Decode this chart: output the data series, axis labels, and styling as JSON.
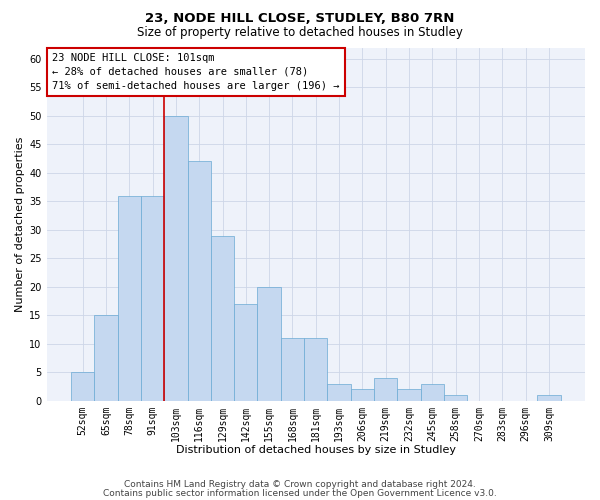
{
  "title1": "23, NODE HILL CLOSE, STUDLEY, B80 7RN",
  "title2": "Size of property relative to detached houses in Studley",
  "xlabel": "Distribution of detached houses by size in Studley",
  "ylabel": "Number of detached properties",
  "categories": [
    "52sqm",
    "65sqm",
    "78sqm",
    "91sqm",
    "103sqm",
    "116sqm",
    "129sqm",
    "142sqm",
    "155sqm",
    "168sqm",
    "181sqm",
    "193sqm",
    "206sqm",
    "219sqm",
    "232sqm",
    "245sqm",
    "258sqm",
    "270sqm",
    "283sqm",
    "296sqm",
    "309sqm"
  ],
  "values": [
    5,
    15,
    36,
    36,
    50,
    42,
    29,
    17,
    20,
    11,
    11,
    3,
    2,
    4,
    2,
    3,
    1,
    0,
    0,
    0,
    1
  ],
  "bar_color": "#c5d8f0",
  "bar_edge_color": "#6aaad4",
  "grid_color": "#cdd6e8",
  "annotation_line_color": "#cc0000",
  "annotation_box_text": "23 NODE HILL CLOSE: 101sqm\n← 28% of detached houses are smaller (78)\n71% of semi-detached houses are larger (196) →",
  "footnote1": "Contains HM Land Registry data © Crown copyright and database right 2024.",
  "footnote2": "Contains public sector information licensed under the Open Government Licence v3.0.",
  "ylim": [
    0,
    62
  ],
  "yticks": [
    0,
    5,
    10,
    15,
    20,
    25,
    30,
    35,
    40,
    45,
    50,
    55,
    60
  ],
  "bar_width": 1.0,
  "title1_fontsize": 9.5,
  "title2_fontsize": 8.5,
  "xlabel_fontsize": 8,
  "ylabel_fontsize": 8,
  "tick_fontsize": 7,
  "annotation_fontsize": 7.5,
  "footnote_fontsize": 6.5,
  "bg_color": "#eef2fa"
}
